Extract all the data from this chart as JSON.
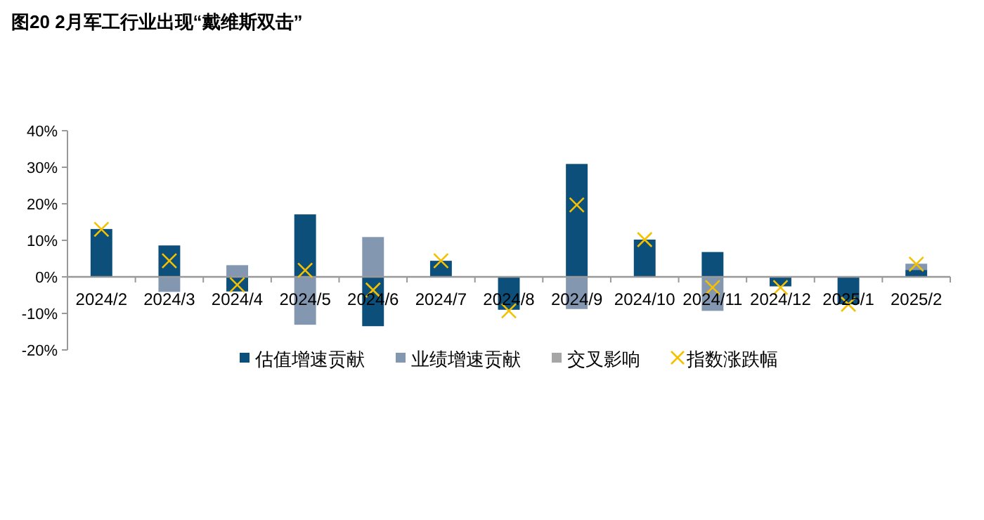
{
  "chart_data": {
    "type": "bar",
    "stacked": true,
    "title": "图20 2月军工行业出现“戴维斯双击”",
    "categories": [
      "2024/2",
      "2024/3",
      "2024/4",
      "2024/5",
      "2024/6",
      "2024/7",
      "2024/8",
      "2024/9",
      "2024/10",
      "2024/11",
      "2024/12",
      "2025/1",
      "2025/2"
    ],
    "series": [
      {
        "name": "估值增速贡献",
        "color": "#0b4f7a",
        "values": [
          13.1,
          8.6,
          -4,
          17.1,
          -13.5,
          4.4,
          -9,
          30.9,
          10.2,
          6.8,
          -2.6,
          -7.5,
          1.9
        ]
      },
      {
        "name": "业绩增速贡献",
        "color": "#8497b0",
        "values": [
          null,
          -4.1,
          3.2,
          -13.1,
          10.9,
          null,
          null,
          -8.8,
          null,
          -9.3,
          null,
          null,
          1.7
        ]
      },
      {
        "name": "交叉影响",
        "color": "#a6a6a6",
        "values": [
          null,
          null,
          null,
          null,
          null,
          null,
          null,
          null,
          null,
          null,
          null,
          null,
          null
        ]
      },
      {
        "name": "指数涨跌幅",
        "type": "scatter",
        "marker": "cross",
        "color": "#f5c000",
        "values": [
          13,
          4.4,
          -2.2,
          1.8,
          -3.6,
          4.4,
          -9.3,
          19.7,
          10.2,
          -2.9,
          -2.9,
          -7.5,
          3.5
        ]
      }
    ],
    "ylim": [
      -20,
      40
    ],
    "yticks": [
      {
        "value": -20,
        "label": "-20%"
      },
      {
        "value": -10,
        "label": "-10%"
      },
      {
        "value": 0,
        "label": "0%"
      },
      {
        "value": 10,
        "label": "10%"
      },
      {
        "value": 20,
        "label": "20%"
      },
      {
        "value": 30,
        "label": "30%"
      },
      {
        "value": 40,
        "label": "40%"
      }
    ],
    "legend": "bottom"
  }
}
